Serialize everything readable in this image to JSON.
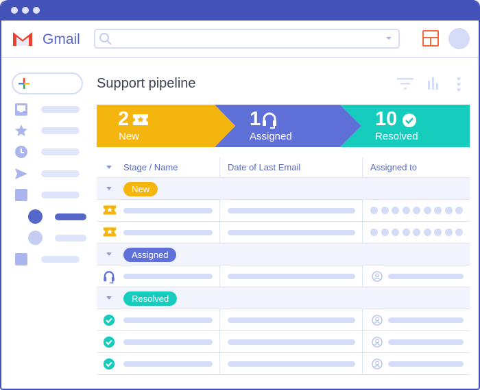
{
  "app": {
    "brand": "Gmail",
    "search": {
      "value": "",
      "placeholder": ""
    }
  },
  "colors": {
    "titlebar": "#4352b8",
    "new": "#f5b50f",
    "assigned": "#5f71d9",
    "resolved": "#16cdbd",
    "placeholder": "#d4dcf7"
  },
  "page": {
    "title": "Support pipeline"
  },
  "pipeline": [
    {
      "count": "2",
      "label": "New",
      "icon": "ticket-star-icon"
    },
    {
      "count": "1",
      "label": "Assigned",
      "icon": "headset-icon"
    },
    {
      "count": "10",
      "label": "Resolved",
      "icon": "check-circle-icon"
    }
  ],
  "table": {
    "columns": [
      "Stage / Name",
      "Date of Last Email",
      "Assigned to"
    ],
    "groups": [
      {
        "label": "New",
        "rows": 2
      },
      {
        "label": "Assigned",
        "rows": 1
      },
      {
        "label": "Resolved",
        "rows": 3
      }
    ]
  }
}
